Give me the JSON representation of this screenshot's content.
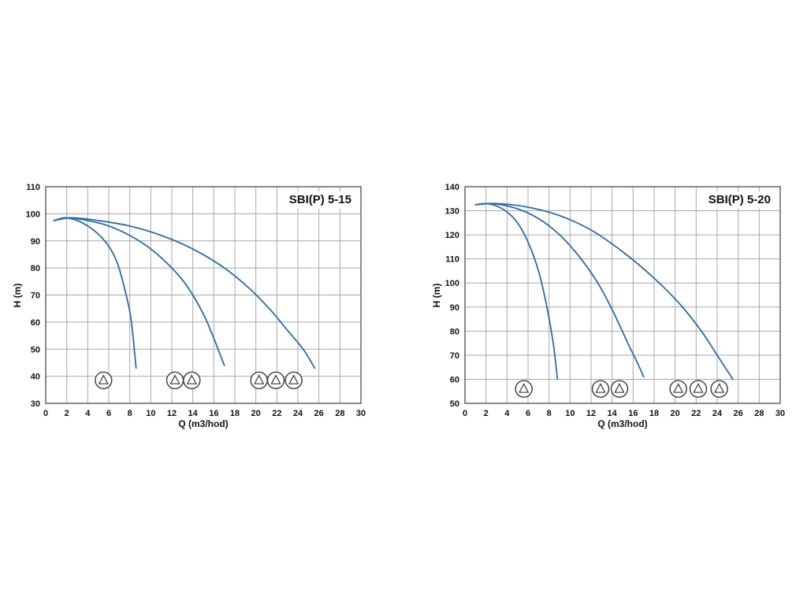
{
  "style": {
    "curve_color": "#2b6ca8",
    "grid_color": "#a8a8a8",
    "axis_color": "#4d4d4d",
    "symbol_color": "#3a3a3a",
    "text_color": "#111111",
    "background": "#ffffff"
  },
  "chart_data": [
    {
      "type": "line",
      "title": "SBI(P) 5-15",
      "xlabel": "Q (m3/hod)",
      "ylabel": "H (m)",
      "xlim": [
        0,
        30
      ],
      "ylim": [
        30,
        110
      ],
      "xtick_step": 2,
      "ytick_step": 10,
      "grid": true,
      "legend": "none",
      "series": [
        {
          "points": [
            [
              0.8,
              97.5
            ],
            [
              1.8,
              98.5
            ],
            [
              3,
              97.5
            ],
            [
              4,
              95.5
            ],
            [
              5,
              92.5
            ],
            [
              6,
              88
            ],
            [
              6.8,
              82
            ],
            [
              7.4,
              74
            ],
            [
              8,
              64
            ],
            [
              8.3,
              55
            ],
            [
              8.6,
              43
            ]
          ]
        },
        {
          "points": [
            [
              0.8,
              97.5
            ],
            [
              2,
              98.5
            ],
            [
              4,
              97.5
            ],
            [
              6,
              95.5
            ],
            [
              8,
              92
            ],
            [
              10,
              87
            ],
            [
              12,
              80
            ],
            [
              13.5,
              73
            ],
            [
              15,
              63
            ],
            [
              16,
              54
            ],
            [
              16.6,
              48
            ],
            [
              17,
              44
            ]
          ]
        },
        {
          "points": [
            [
              0.8,
              97.5
            ],
            [
              2.5,
              98.5
            ],
            [
              5,
              97.5
            ],
            [
              8,
              95.5
            ],
            [
              11,
              92
            ],
            [
              14,
              87
            ],
            [
              17,
              80
            ],
            [
              19.5,
              72
            ],
            [
              21.5,
              64
            ],
            [
              23,
              57
            ],
            [
              24.5,
              50
            ],
            [
              25.6,
              43
            ]
          ]
        }
      ],
      "pump_symbols": {
        "y": 38.5,
        "groups": [
          [
            5.5
          ],
          [
            12.3,
            13.9
          ],
          [
            20.3,
            21.9,
            23.6
          ]
        ]
      }
    },
    {
      "type": "line",
      "title": "SBI(P) 5-20",
      "xlabel": "Q (m3/hod)",
      "ylabel": "H (m)",
      "xlim": [
        0,
        30
      ],
      "ylim": [
        50,
        140
      ],
      "xtick_step": 2,
      "ytick_step": 10,
      "grid": true,
      "legend": "none",
      "series": [
        {
          "points": [
            [
              1,
              132.5
            ],
            [
              2,
              133
            ],
            [
              3,
              132
            ],
            [
              4,
              129.5
            ],
            [
              5,
              125
            ],
            [
              6,
              117
            ],
            [
              7,
              105
            ],
            [
              7.8,
              90
            ],
            [
              8.4,
              75
            ],
            [
              8.8,
              60
            ]
          ]
        },
        {
          "points": [
            [
              1,
              132.5
            ],
            [
              2.5,
              133
            ],
            [
              4.5,
              131.5
            ],
            [
              6.5,
              128
            ],
            [
              8.5,
              122
            ],
            [
              10.5,
              113
            ],
            [
              12.5,
              101
            ],
            [
              14,
              89
            ],
            [
              15.5,
              75
            ],
            [
              16.5,
              66
            ],
            [
              17,
              61
            ]
          ]
        },
        {
          "points": [
            [
              1,
              132.5
            ],
            [
              3,
              133
            ],
            [
              6,
              131.5
            ],
            [
              9,
              128
            ],
            [
              12,
              122
            ],
            [
              15,
              113
            ],
            [
              18,
              102
            ],
            [
              20.5,
              91
            ],
            [
              22.5,
              80
            ],
            [
              24,
              70
            ],
            [
              25.5,
              60
            ]
          ]
        }
      ],
      "pump_symbols": {
        "y": 56,
        "groups": [
          [
            5.6
          ],
          [
            12.9,
            14.7
          ],
          [
            20.3,
            22.2,
            24.2
          ]
        ]
      }
    }
  ]
}
